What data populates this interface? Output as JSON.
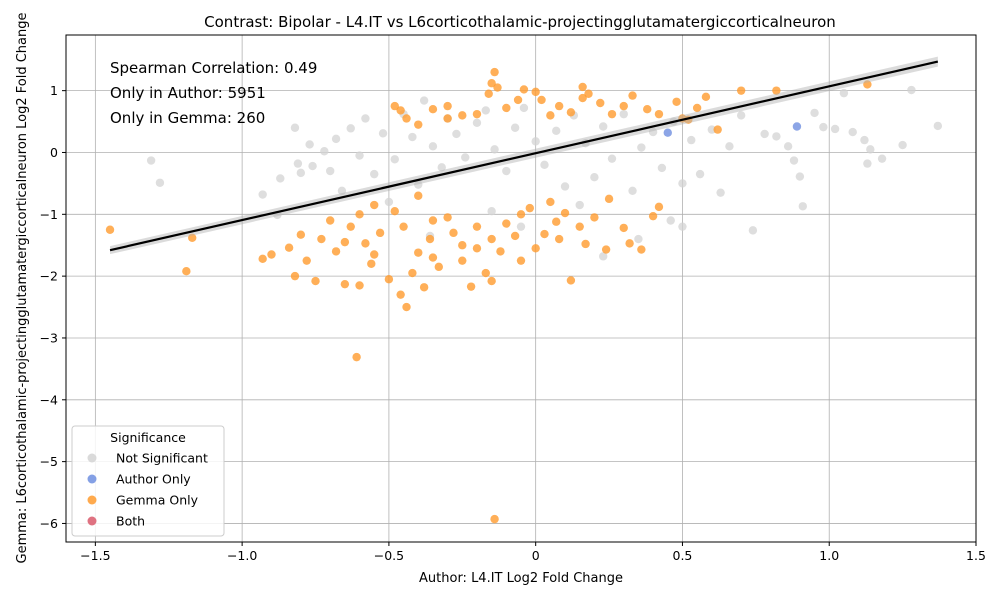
{
  "chart_data": {
    "type": "scatter",
    "title": "Contrast: Bipolar - L4.IT vs L6corticothalamic-projectingglutamatergiccorticalneuron",
    "xlabel": "Author: L4.IT Log2 Fold Change",
    "ylabel": "Gemma: L6corticothalamic-projectingglutamatergiccorticalneuron Log2 Fold Change",
    "xlim": [
      -1.6,
      1.5
    ],
    "ylim": [
      -6.3,
      1.9
    ],
    "xticks": [
      "−1.5",
      "−1.0",
      "−0.5",
      "0",
      "0.5",
      "1.0",
      "1.5"
    ],
    "xtick_values": [
      -1.5,
      -1.0,
      -0.5,
      0,
      0.5,
      1.0,
      1.5
    ],
    "yticks": [
      "−6",
      "−5",
      "−4",
      "−3",
      "−2",
      "−1",
      "0",
      "1"
    ],
    "ytick_values": [
      -6,
      -5,
      -4,
      -3,
      -2,
      -1,
      0,
      1
    ],
    "grid": true,
    "annotations": [
      "Spearman Correlation: 0.49",
      "Only in Author: 5951",
      "Only in Gemma: 260"
    ],
    "regression_line": {
      "x": [
        -1.45,
        1.37
      ],
      "y": [
        -1.58,
        1.47
      ],
      "color": "#000000"
    },
    "legend": {
      "title": "Significance",
      "position": "lower-left",
      "entries": [
        {
          "name": "Not Significant",
          "color": "#d3d3d3"
        },
        {
          "name": "Author Only",
          "color": "#6f8fe0"
        },
        {
          "name": "Gemma Only",
          "color": "#ff9b2e"
        },
        {
          "name": "Both",
          "color": "#d9596b"
        }
      ]
    },
    "series": [
      {
        "name": "Not Significant",
        "color": "#d3d3d3",
        "points": [
          [
            -1.31,
            -0.13
          ],
          [
            -1.28,
            -0.49
          ],
          [
            -0.93,
            -0.68
          ],
          [
            -0.88,
            -1.01
          ],
          [
            -0.87,
            -0.42
          ],
          [
            -0.82,
            0.4
          ],
          [
            -0.81,
            -0.18
          ],
          [
            -0.8,
            -0.33
          ],
          [
            -0.77,
            0.13
          ],
          [
            -0.76,
            -0.22
          ],
          [
            -0.72,
            0.02
          ],
          [
            -0.7,
            -0.3
          ],
          [
            -0.68,
            0.22
          ],
          [
            -0.66,
            -0.62
          ],
          [
            -0.63,
            0.39
          ],
          [
            -0.6,
            -0.05
          ],
          [
            -0.58,
            0.55
          ],
          [
            -0.55,
            -0.35
          ],
          [
            -0.52,
            0.31
          ],
          [
            -0.48,
            -0.11
          ],
          [
            -0.45,
            0.62
          ],
          [
            -0.42,
            0.25
          ],
          [
            -0.4,
            -0.52
          ],
          [
            -0.38,
            0.84
          ],
          [
            -0.35,
            0.1
          ],
          [
            -0.32,
            -0.24
          ],
          [
            -0.3,
            0.55
          ],
          [
            -0.27,
            0.3
          ],
          [
            -0.24,
            -0.08
          ],
          [
            -0.2,
            0.48
          ],
          [
            -0.17,
            0.68
          ],
          [
            -0.14,
            0.05
          ],
          [
            -0.1,
            -0.3
          ],
          [
            -0.07,
            0.4
          ],
          [
            -0.04,
            0.72
          ],
          [
            0.0,
            0.18
          ],
          [
            0.03,
            -0.2
          ],
          [
            0.07,
            0.35
          ],
          [
            0.1,
            -0.55
          ],
          [
            0.13,
            0.6
          ],
          [
            0.17,
            0.15
          ],
          [
            0.2,
            -0.4
          ],
          [
            0.23,
            0.42
          ],
          [
            0.26,
            -0.1
          ],
          [
            0.3,
            0.62
          ],
          [
            0.33,
            -0.62
          ],
          [
            0.36,
            0.08
          ],
          [
            0.4,
            0.33
          ],
          [
            0.43,
            -0.25
          ],
          [
            0.47,
            0.5
          ],
          [
            0.5,
            -0.5
          ],
          [
            0.53,
            0.2
          ],
          [
            0.56,
            -0.35
          ],
          [
            0.6,
            0.37
          ],
          [
            0.63,
            -0.65
          ],
          [
            0.66,
            0.1
          ],
          [
            0.7,
            0.6
          ],
          [
            0.74,
            -1.26
          ],
          [
            0.78,
            0.3
          ],
          [
            0.82,
            0.26
          ],
          [
            0.86,
            0.1
          ],
          [
            0.88,
            -0.13
          ],
          [
            0.9,
            -0.39
          ],
          [
            0.91,
            -0.87
          ],
          [
            0.95,
            0.64
          ],
          [
            0.98,
            0.41
          ],
          [
            1.02,
            0.38
          ],
          [
            1.05,
            0.96
          ],
          [
            1.08,
            0.33
          ],
          [
            1.12,
            0.2
          ],
          [
            1.13,
            -0.18
          ],
          [
            1.14,
            0.05
          ],
          [
            1.18,
            -0.1
          ],
          [
            1.25,
            0.12
          ],
          [
            1.28,
            1.01
          ],
          [
            1.37,
            0.43
          ],
          [
            -0.36,
            -1.35
          ],
          [
            0.23,
            -1.68
          ],
          [
            0.46,
            -1.1
          ],
          [
            0.5,
            -1.2
          ],
          [
            -0.15,
            -0.95
          ],
          [
            0.35,
            -1.4
          ],
          [
            -0.5,
            -0.8
          ],
          [
            0.15,
            -0.85
          ],
          [
            -0.05,
            -1.2
          ]
        ]
      },
      {
        "name": "Author Only",
        "color": "#6f8fe0",
        "points": [
          [
            0.89,
            0.42
          ],
          [
            0.45,
            0.32
          ]
        ]
      },
      {
        "name": "Gemma Only",
        "color": "#ff9b2e",
        "points": [
          [
            -1.45,
            -1.25
          ],
          [
            -1.19,
            -1.92
          ],
          [
            -1.17,
            -1.38
          ],
          [
            -0.93,
            -1.72
          ],
          [
            -0.9,
            -1.65
          ],
          [
            -0.84,
            -1.54
          ],
          [
            -0.82,
            -2.0
          ],
          [
            -0.8,
            -1.33
          ],
          [
            -0.78,
            -1.75
          ],
          [
            -0.75,
            -2.08
          ],
          [
            -0.73,
            -1.4
          ],
          [
            -0.7,
            -1.1
          ],
          [
            -0.68,
            -1.6
          ],
          [
            -0.65,
            -2.13
          ],
          [
            -0.63,
            -1.2
          ],
          [
            -0.61,
            -3.31
          ],
          [
            -0.6,
            -2.15
          ],
          [
            -0.58,
            -1.47
          ],
          [
            -0.56,
            -1.8
          ],
          [
            -0.53,
            -1.3
          ],
          [
            -0.5,
            -2.05
          ],
          [
            -0.48,
            -0.95
          ],
          [
            -0.46,
            -2.3
          ],
          [
            -0.44,
            -2.5
          ],
          [
            -0.42,
            -1.95
          ],
          [
            -0.4,
            -1.62
          ],
          [
            -0.38,
            -2.18
          ],
          [
            -0.36,
            -1.4
          ],
          [
            -0.33,
            -1.85
          ],
          [
            -0.3,
            -1.05
          ],
          [
            -0.28,
            -1.3
          ],
          [
            -0.25,
            -1.75
          ],
          [
            -0.22,
            -2.17
          ],
          [
            -0.2,
            -1.55
          ],
          [
            -0.17,
            -1.95
          ],
          [
            -0.15,
            -2.08
          ],
          [
            -0.14,
            -5.93
          ],
          [
            -0.12,
            -1.6
          ],
          [
            -0.1,
            -1.15
          ],
          [
            -0.07,
            -1.35
          ],
          [
            -0.05,
            -1.75
          ],
          [
            -0.02,
            -0.9
          ],
          [
            0.0,
            -1.55
          ],
          [
            0.03,
            -1.32
          ],
          [
            0.07,
            -1.12
          ],
          [
            0.1,
            -0.98
          ],
          [
            0.12,
            -2.07
          ],
          [
            0.15,
            -1.2
          ],
          [
            0.17,
            -1.48
          ],
          [
            0.2,
            -1.05
          ],
          [
            0.24,
            -1.57
          ],
          [
            0.3,
            -1.22
          ],
          [
            0.32,
            -1.47
          ],
          [
            0.36,
            -1.57
          ],
          [
            0.4,
            -1.03
          ],
          [
            0.42,
            -0.88
          ],
          [
            -0.48,
            0.75
          ],
          [
            -0.46,
            0.68
          ],
          [
            -0.44,
            0.55
          ],
          [
            -0.4,
            0.45
          ],
          [
            -0.35,
            0.7
          ],
          [
            -0.3,
            0.55
          ],
          [
            -0.25,
            0.6
          ],
          [
            -0.2,
            0.62
          ],
          [
            -0.16,
            0.95
          ],
          [
            -0.15,
            1.12
          ],
          [
            -0.14,
            1.3
          ],
          [
            -0.13,
            1.05
          ],
          [
            -0.1,
            0.72
          ],
          [
            -0.06,
            0.85
          ],
          [
            -0.04,
            1.02
          ],
          [
            0.0,
            0.98
          ],
          [
            0.02,
            0.85
          ],
          [
            0.05,
            0.6
          ],
          [
            0.08,
            0.75
          ],
          [
            0.12,
            0.65
          ],
          [
            0.16,
            0.88
          ],
          [
            0.16,
            1.06
          ],
          [
            0.18,
            0.95
          ],
          [
            0.22,
            0.8
          ],
          [
            0.26,
            0.62
          ],
          [
            0.3,
            0.75
          ],
          [
            0.33,
            0.92
          ],
          [
            0.38,
            0.7
          ],
          [
            0.42,
            0.62
          ],
          [
            0.48,
            0.82
          ],
          [
            0.5,
            0.55
          ],
          [
            0.52,
            0.53
          ],
          [
            0.55,
            0.72
          ],
          [
            0.58,
            0.9
          ],
          [
            0.62,
            0.37
          ],
          [
            0.7,
            1.0
          ],
          [
            0.82,
            1.0
          ],
          [
            1.13,
            1.1
          ],
          [
            -0.3,
            0.75
          ],
          [
            -0.55,
            -0.85
          ],
          [
            -0.6,
            -1.0
          ],
          [
            -0.35,
            -1.1
          ],
          [
            -0.2,
            -1.2
          ],
          [
            -0.05,
            -1.0
          ],
          [
            0.05,
            -0.8
          ],
          [
            -0.45,
            -1.2
          ],
          [
            -0.25,
            -1.5
          ],
          [
            -0.65,
            -1.45
          ],
          [
            -0.55,
            -1.65
          ],
          [
            -0.35,
            -1.7
          ],
          [
            -0.15,
            -1.4
          ],
          [
            0.08,
            -1.4
          ],
          [
            -0.4,
            -0.7
          ],
          [
            0.25,
            -0.75
          ]
        ]
      },
      {
        "name": "Both",
        "color": "#d9596b",
        "points": []
      }
    ]
  }
}
